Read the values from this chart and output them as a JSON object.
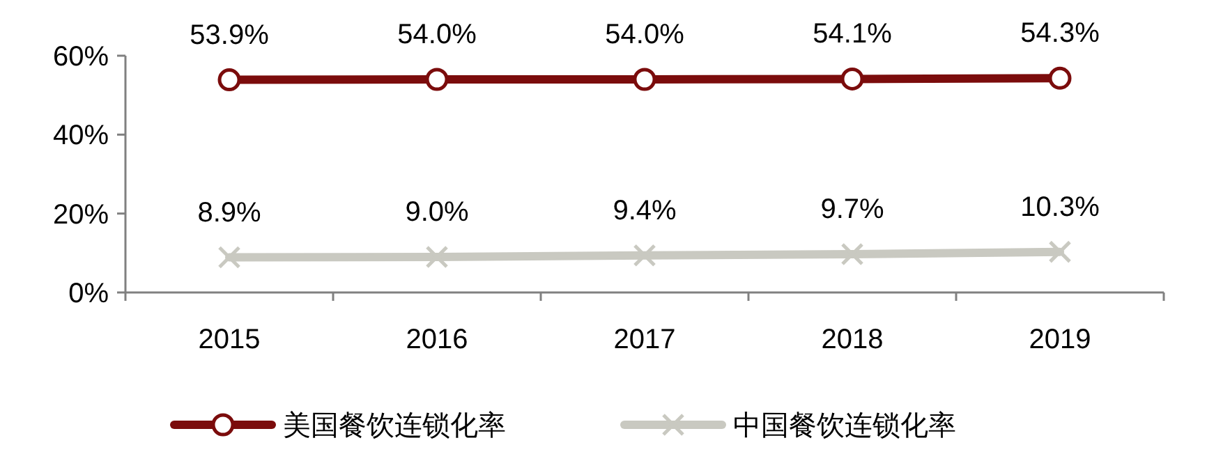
{
  "chart_data": {
    "type": "line",
    "categories": [
      "2015",
      "2016",
      "2017",
      "2018",
      "2019"
    ],
    "series": [
      {
        "name": "美国餐饮连锁化率",
        "color": "#7b0c0c",
        "marker": "circle",
        "values": [
          53.9,
          54.0,
          54.0,
          54.1,
          54.3
        ],
        "value_labels": [
          "53.9%",
          "54.0%",
          "54.0%",
          "54.1%",
          "54.3%"
        ]
      },
      {
        "name": "中国餐饮连锁化率",
        "color": "#c9c9c1",
        "marker": "cross",
        "values": [
          8.9,
          9.0,
          9.4,
          9.7,
          10.3
        ],
        "value_labels": [
          "8.9%",
          "9.0%",
          "9.4%",
          "9.7%",
          "10.3%"
        ]
      }
    ],
    "ylim": [
      0,
      60
    ],
    "yticks": [
      {
        "value": 0,
        "label": "0%"
      },
      {
        "value": 20,
        "label": "20%"
      },
      {
        "value": 40,
        "label": "40%"
      },
      {
        "value": 60,
        "label": "60%"
      }
    ],
    "grid": false,
    "legend": "bottom",
    "line_style": "solid"
  }
}
